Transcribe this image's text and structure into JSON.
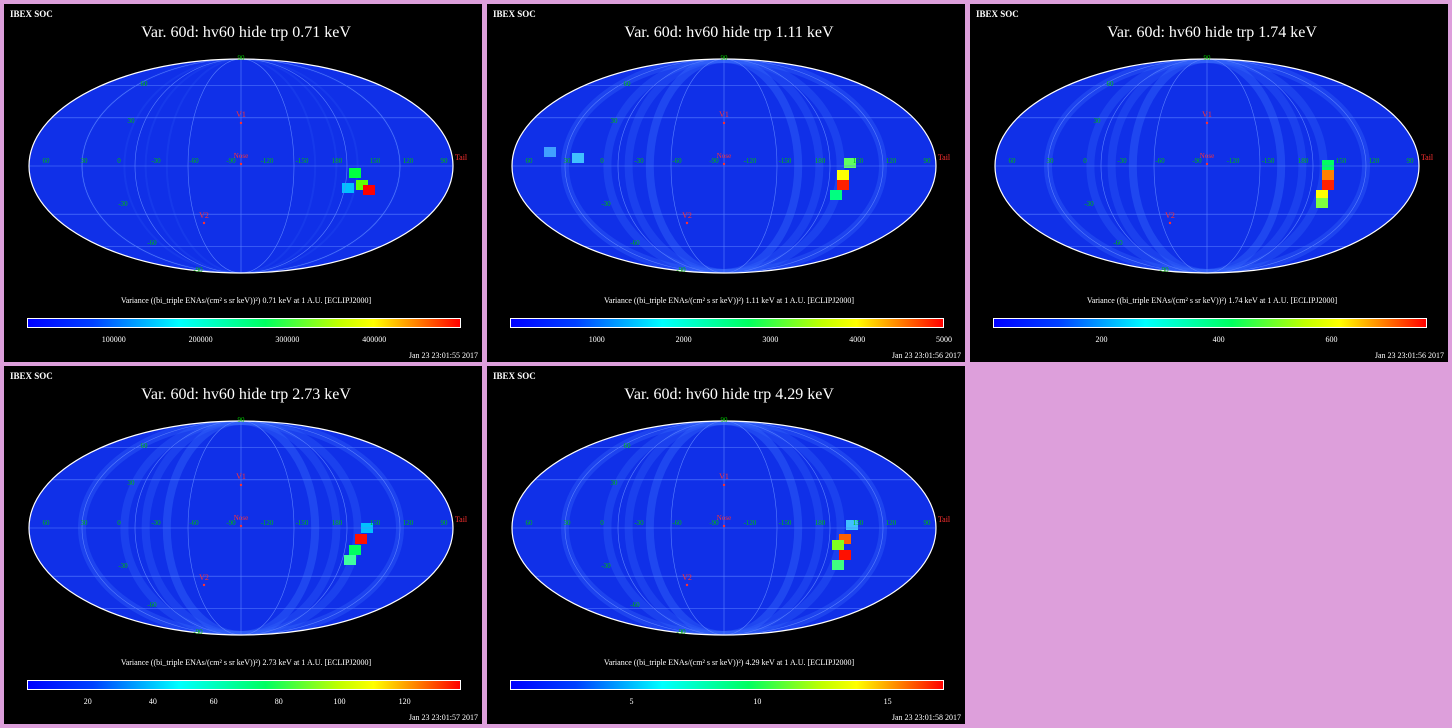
{
  "panels": [
    {
      "header": "IBEX SOC",
      "title": "Var. 60d: hv60 hide trp 0.71 keV",
      "colorbar_label": "Variance ((bi_triple ENAs/(cm² s sr keV))²) 0.71 keV at 1 A.U. [ECLIPJ2000]",
      "colorbar_ticks": [
        "100000",
        "200000",
        "300000",
        "400000"
      ],
      "timestamp": "Jan 23 23:01:55 2017"
    },
    {
      "header": "IBEX SOC",
      "title": "Var. 60d: hv60 hide trp 1.11 keV",
      "colorbar_label": "Variance ((bi_triple ENAs/(cm² s sr keV))²) 1.11 keV at 1 A.U. [ECLIPJ2000]",
      "colorbar_ticks": [
        "1000",
        "2000",
        "3000",
        "4000",
        "5000"
      ],
      "timestamp": "Jan 23 23:01:56 2017"
    },
    {
      "header": "IBEX SOC",
      "title": "Var. 60d: hv60 hide trp 1.74 keV",
      "colorbar_label": "Variance ((bi_triple ENAs/(cm² s sr keV))²) 1.74 keV at 1 A.U. [ECLIPJ2000]",
      "colorbar_ticks": [
        "200",
        "400",
        "600"
      ],
      "timestamp": "Jan 23 23:01:56 2017"
    },
    {
      "header": "IBEX SOC",
      "title": "Var. 60d: hv60 hide trp 2.73 keV",
      "colorbar_label": "Variance ((bi_triple ENAs/(cm² s sr keV))²) 2.73 keV at 1 A.U. [ECLIPJ2000]",
      "colorbar_ticks": [
        "20",
        "40",
        "60",
        "80",
        "100",
        "120"
      ],
      "timestamp": "Jan 23 23:01:57 2017"
    },
    {
      "header": "IBEX SOC",
      "title": "Var. 60d: hv60 hide trp 4.29 keV",
      "colorbar_label": "Variance ((bi_triple ENAs/(cm² s sr keV))²) 4.29 keV at 1 A.U. [ECLIPJ2000]",
      "colorbar_ticks": [
        "5",
        "10",
        "15"
      ],
      "timestamp": "Jan 23 23:01:58 2017"
    }
  ],
  "map_labels": {
    "longitudes": [
      "60",
      "30",
      "0",
      "-30",
      "-60",
      "-90",
      "-120",
      "-150",
      "180",
      "150",
      "120",
      "90"
    ],
    "latitudes_north": [
      "60",
      "30"
    ],
    "latitudes_south": [
      "-30",
      "-60"
    ],
    "pole_north": "90",
    "pole_south": "-90",
    "markers": {
      "nose": "Nose",
      "tail": "Tail",
      "v1": "V1",
      "v2": "V2"
    }
  },
  "chart_data": [
    {
      "type": "heatmap",
      "projection": "mollweide",
      "energy_keV": 0.71,
      "colorbar_range": [
        0,
        450000
      ],
      "colorbar_ticks": [
        100000,
        200000,
        300000,
        400000
      ],
      "feature": "ribbon hot spot near ecliptic longitude 150 on -10 to -20 latitude"
    },
    {
      "type": "heatmap",
      "projection": "mollweide",
      "energy_keV": 1.11,
      "colorbar_range": [
        0,
        5000
      ],
      "colorbar_ticks": [
        1000,
        2000,
        3000,
        4000,
        5000
      ],
      "feature": "hot spot near longitude 150, latitude -5 to -20"
    },
    {
      "type": "heatmap",
      "projection": "mollweide",
      "energy_keV": 1.74,
      "colorbar_range": [
        0,
        700
      ],
      "colorbar_ticks": [
        200,
        400,
        600
      ],
      "feature": "hot spot near longitude 150, latitude 0 to -20"
    },
    {
      "type": "heatmap",
      "projection": "mollweide",
      "energy_keV": 2.73,
      "colorbar_range": [
        0,
        135
      ],
      "colorbar_ticks": [
        20,
        40,
        60,
        80,
        100,
        120
      ],
      "feature": "hot spot near longitude 150, latitude -10"
    },
    {
      "type": "heatmap",
      "projection": "mollweide",
      "energy_keV": 4.29,
      "colorbar_range": [
        0,
        17
      ],
      "colorbar_ticks": [
        5,
        10,
        15
      ],
      "feature": "hot spot near longitude 150, latitude -10 to -20"
    }
  ]
}
